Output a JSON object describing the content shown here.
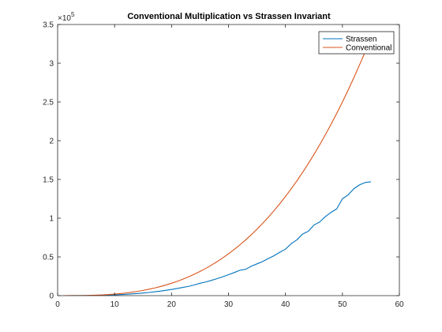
{
  "chart_data": {
    "type": "line",
    "title": "Conventional Multiplication vs Strassen Invariant",
    "xlabel": "",
    "ylabel": "",
    "xlim": [
      0,
      60
    ],
    "ylim": [
      0,
      350000
    ],
    "x_ticks": [
      0,
      10,
      20,
      30,
      40,
      50,
      60
    ],
    "y_ticks": [
      0,
      50000,
      100000,
      150000,
      200000,
      250000,
      300000,
      350000
    ],
    "y_tick_labels": [
      "0",
      "0.5",
      "1",
      "1.5",
      "2",
      "2.5",
      "3",
      "3.5"
    ],
    "y_exponent_label": {
      "base": "×10",
      "power": "5"
    },
    "grid": false,
    "legend_position": "top-right",
    "colors": {
      "strassen": "#0072BD",
      "conventional": "#D95319",
      "axis": "#262626"
    },
    "series": [
      {
        "name": "Strassen",
        "color": "#0072BD",
        "x": [
          1,
          2,
          3,
          4,
          5,
          6,
          7,
          8,
          9,
          10,
          11,
          12,
          13,
          14,
          15,
          16,
          17,
          18,
          19,
          20,
          21,
          22,
          23,
          24,
          25,
          26,
          27,
          28,
          29,
          30,
          31,
          32,
          33,
          34,
          35,
          36,
          37,
          38,
          39,
          40,
          41,
          42,
          43,
          44,
          45,
          46,
          47,
          48,
          49,
          50,
          51,
          52,
          53,
          54,
          55
        ],
        "y": [
          1,
          8,
          27,
          64,
          125,
          216,
          343,
          512,
          729,
          1000,
          1331,
          1728,
          2197,
          2744,
          3375,
          4096,
          4913,
          5832,
          6859,
          8000,
          9261,
          10648,
          12000,
          13800,
          16000,
          17600,
          19683,
          21952,
          24389,
          27000,
          29791,
          32768,
          34000,
          38000,
          41000,
          44000,
          48000,
          51500,
          56000,
          60000,
          67000,
          72000,
          79507,
          83000,
          91125,
          95000,
          102000,
          107500,
          112000,
          125000,
          130000,
          138000,
          143000,
          146000,
          147000
        ]
      },
      {
        "name": "Conventional",
        "color": "#D95319",
        "x": [
          1,
          2,
          3,
          4,
          5,
          6,
          7,
          8,
          9,
          10,
          11,
          12,
          13,
          14,
          15,
          16,
          17,
          18,
          19,
          20,
          21,
          22,
          23,
          24,
          25,
          26,
          27,
          28,
          29,
          30,
          31,
          32,
          33,
          34,
          35,
          36,
          37,
          38,
          39,
          40,
          41,
          42,
          43,
          44,
          45,
          46,
          47,
          48,
          49,
          50,
          51,
          52,
          53,
          54,
          55
        ],
        "y": [
          2,
          16,
          54,
          128,
          250,
          432,
          686,
          1024,
          1458,
          2000,
          2662,
          3456,
          4394,
          5488,
          6750,
          8192,
          9826,
          11664,
          13718,
          16000,
          18522,
          21296,
          24334,
          27648,
          31250,
          35152,
          39366,
          43904,
          48778,
          54000,
          59582,
          65536,
          71874,
          78608,
          85750,
          93312,
          101306,
          109744,
          118638,
          128000,
          137842,
          148176,
          159014,
          170368,
          182250,
          194672,
          207646,
          221184,
          235298,
          250000,
          265302,
          281216,
          297754,
          314928,
          332750
        ]
      }
    ]
  }
}
